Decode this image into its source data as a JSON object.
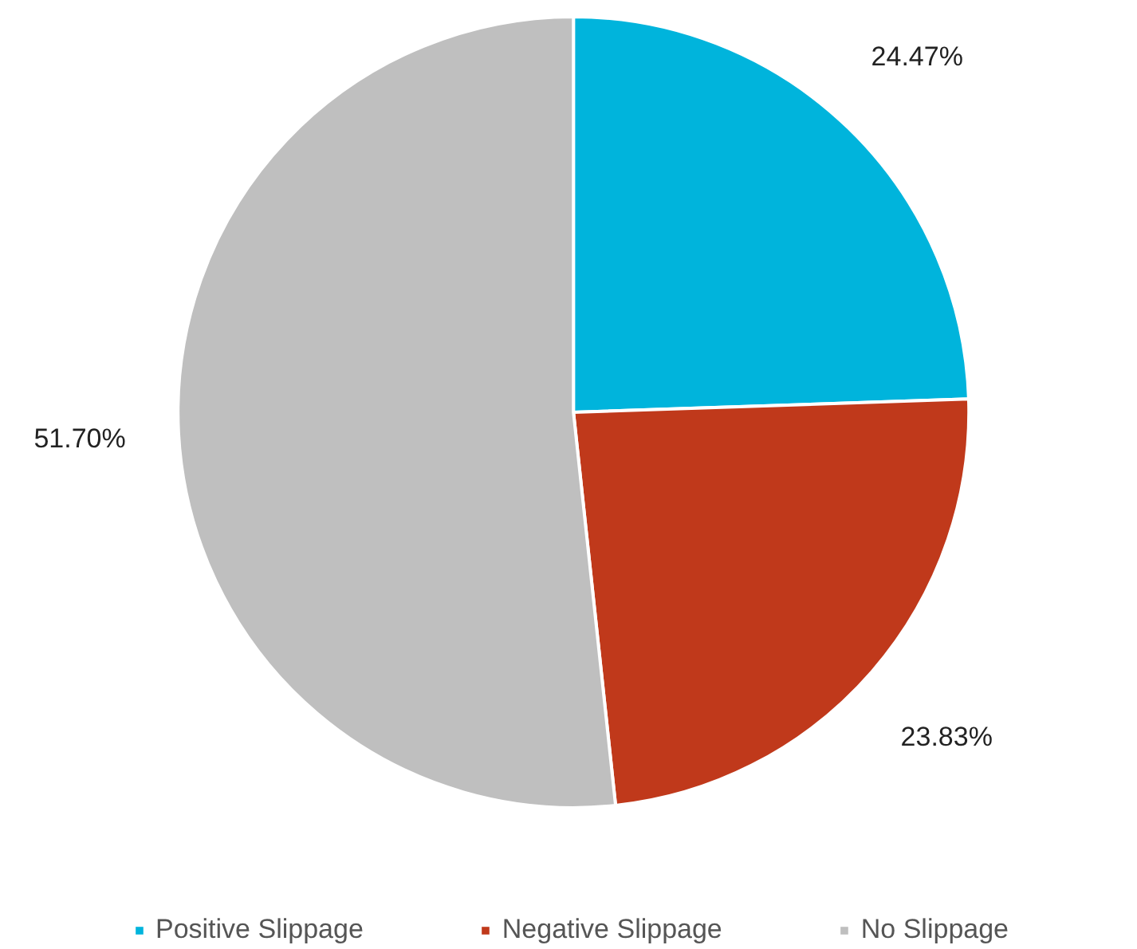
{
  "chart_data": {
    "type": "pie",
    "categories": [
      "Positive Slippage",
      "Negative Slippage",
      "No Slippage"
    ],
    "values": [
      24.47,
      23.83,
      51.7
    ],
    "colors": [
      "#00b4dc",
      "#c0391b",
      "#bfbfbf"
    ],
    "value_labels": [
      "24.47%",
      "23.83%",
      "51.70%"
    ],
    "legend": "bottom"
  }
}
